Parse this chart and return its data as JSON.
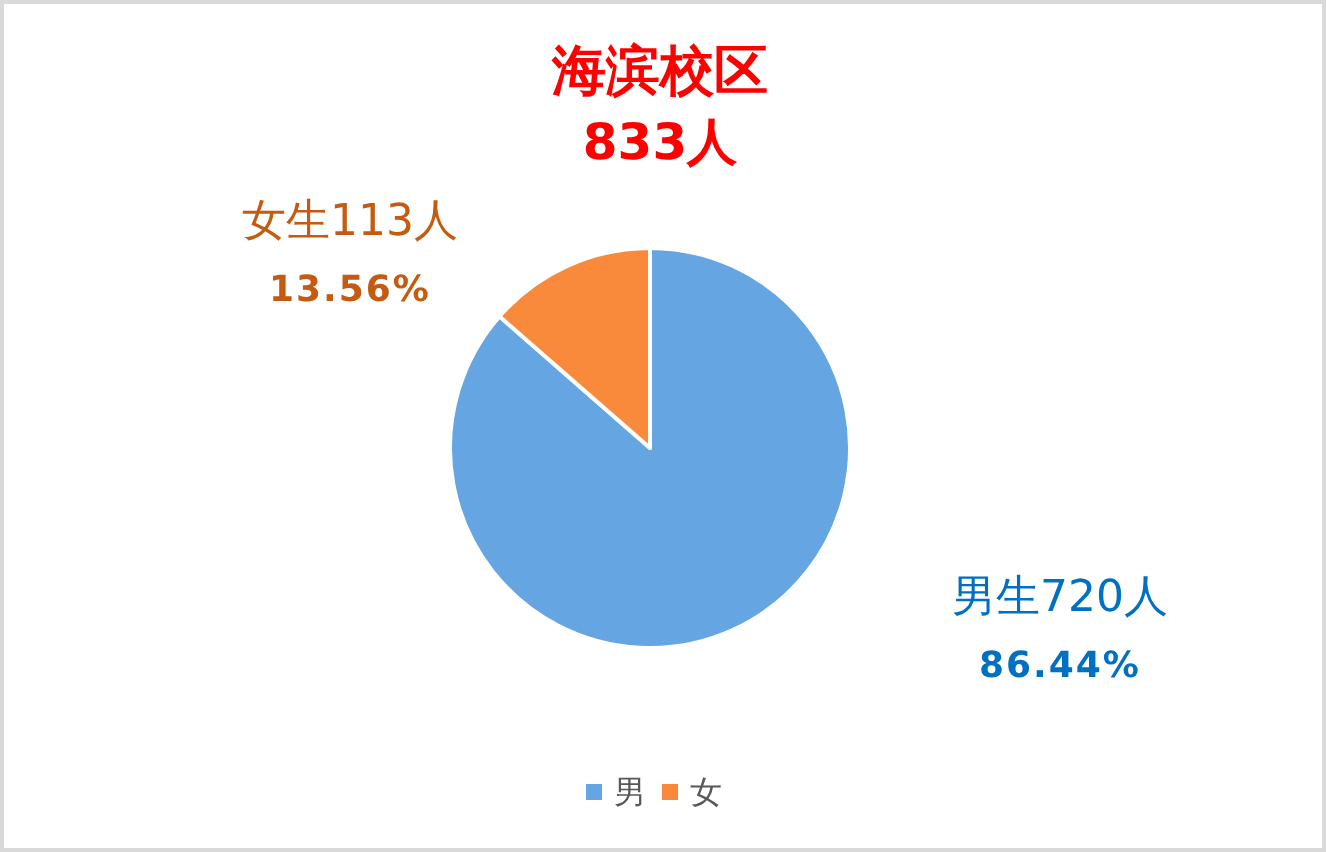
{
  "chart_data": {
    "type": "pie",
    "title": "海滨校区",
    "subtitle": "833人",
    "categories": [
      "男",
      "女"
    ],
    "values": [
      720,
      113
    ],
    "colors": [
      "#65a6e2",
      "#f98a3b"
    ],
    "value_labels": [
      "男生720人\n86.44%",
      "女生113人\n13.56%"
    ],
    "legend": "bottom"
  }
}
